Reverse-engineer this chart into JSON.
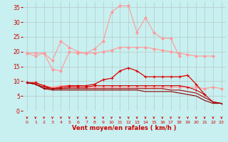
{
  "x": [
    0,
    1,
    2,
    3,
    4,
    5,
    6,
    7,
    8,
    9,
    10,
    11,
    12,
    13,
    14,
    15,
    16,
    17,
    18,
    19,
    20,
    21,
    22,
    23
  ],
  "series": [
    {
      "name": "line_pink_high",
      "color": "#ff9999",
      "linewidth": 0.8,
      "marker": "D",
      "markersize": 1.8,
      "y": [
        19.5,
        18.5,
        19.5,
        17.0,
        23.5,
        21.5,
        20.0,
        19.5,
        21.0,
        23.5,
        33.5,
        35.5,
        35.5,
        26.5,
        31.5,
        26.5,
        24.5,
        24.5,
        18.5,
        null,
        null,
        null,
        null,
        null
      ]
    },
    {
      "name": "line_pink_flat",
      "color": "#ff9999",
      "linewidth": 0.8,
      "marker": "D",
      "markersize": 1.8,
      "y": [
        19.5,
        19.5,
        19.5,
        14.0,
        13.5,
        20.0,
        19.5,
        19.5,
        19.5,
        20.0,
        20.5,
        21.5,
        21.5,
        21.5,
        21.5,
        21.0,
        20.5,
        20.0,
        19.5,
        19.0,
        18.5,
        18.5,
        18.5,
        null
      ]
    },
    {
      "name": "line_pink_low",
      "color": "#ff9999",
      "linewidth": 0.8,
      "marker": "D",
      "markersize": 1.8,
      "y": [
        9.5,
        9.5,
        8.5,
        8.0,
        8.5,
        8.5,
        8.0,
        8.0,
        8.0,
        8.0,
        8.0,
        8.0,
        8.0,
        8.0,
        8.0,
        8.0,
        8.0,
        8.0,
        8.0,
        8.0,
        8.0,
        7.5,
        8.0,
        7.5
      ]
    },
    {
      "name": "line_red_curve",
      "color": "#dd0000",
      "linewidth": 0.9,
      "marker": "+",
      "markersize": 2.5,
      "y": [
        9.5,
        9.5,
        8.5,
        7.5,
        8.0,
        8.5,
        8.5,
        8.5,
        9.0,
        10.5,
        11.0,
        13.5,
        14.5,
        13.5,
        11.5,
        11.5,
        11.5,
        11.5,
        11.5,
        12.0,
        9.0,
        5.5,
        null,
        null
      ]
    },
    {
      "name": "line_red_flat1",
      "color": "#cc0000",
      "linewidth": 0.8,
      "marker": "+",
      "markersize": 2.0,
      "y": [
        9.5,
        9.0,
        7.5,
        7.5,
        7.5,
        8.0,
        8.0,
        8.0,
        8.5,
        8.5,
        8.5,
        8.5,
        8.5,
        8.5,
        8.5,
        8.5,
        8.5,
        8.5,
        8.5,
        8.0,
        7.0,
        5.5,
        3.0,
        2.5
      ]
    },
    {
      "name": "line_dark_red1",
      "color": "#aa0000",
      "linewidth": 0.8,
      "marker": null,
      "markersize": 0,
      "y": [
        9.5,
        9.0,
        8.0,
        7.5,
        7.5,
        7.5,
        7.5,
        7.5,
        7.5,
        7.5,
        7.5,
        7.5,
        7.5,
        7.5,
        7.5,
        7.5,
        7.5,
        7.0,
        7.0,
        6.5,
        6.0,
        4.5,
        3.0,
        2.5
      ]
    },
    {
      "name": "line_dark_red2",
      "color": "#880000",
      "linewidth": 0.8,
      "marker": null,
      "markersize": 0,
      "y": [
        9.5,
        9.0,
        7.5,
        7.0,
        7.0,
        7.0,
        7.0,
        7.0,
        7.0,
        7.0,
        7.0,
        7.0,
        7.0,
        7.0,
        6.5,
        6.5,
        6.5,
        6.5,
        6.0,
        5.5,
        5.0,
        3.5,
        2.5,
        2.5
      ]
    }
  ],
  "xlabel": "Vent moyen/en rafales ( km/h )",
  "xlim_min": -0.5,
  "xlim_max": 23.5,
  "ylim_min": 0,
  "ylim_max": 37,
  "yticks": [
    0,
    5,
    10,
    15,
    20,
    25,
    30,
    35
  ],
  "xticks": [
    0,
    1,
    2,
    3,
    4,
    5,
    6,
    7,
    8,
    9,
    10,
    11,
    12,
    13,
    14,
    15,
    16,
    17,
    18,
    19,
    20,
    21,
    22,
    23
  ],
  "background_color": "#c8f0f0",
  "grid_color": "#b0b0b0",
  "xlabel_color": "#cc0000",
  "tick_color": "#cc0000",
  "arrow_color": "#cc0000",
  "xlabel_fontsize": 6.0,
  "tick_fontsize_x": 4.5,
  "tick_fontsize_y": 5.5
}
